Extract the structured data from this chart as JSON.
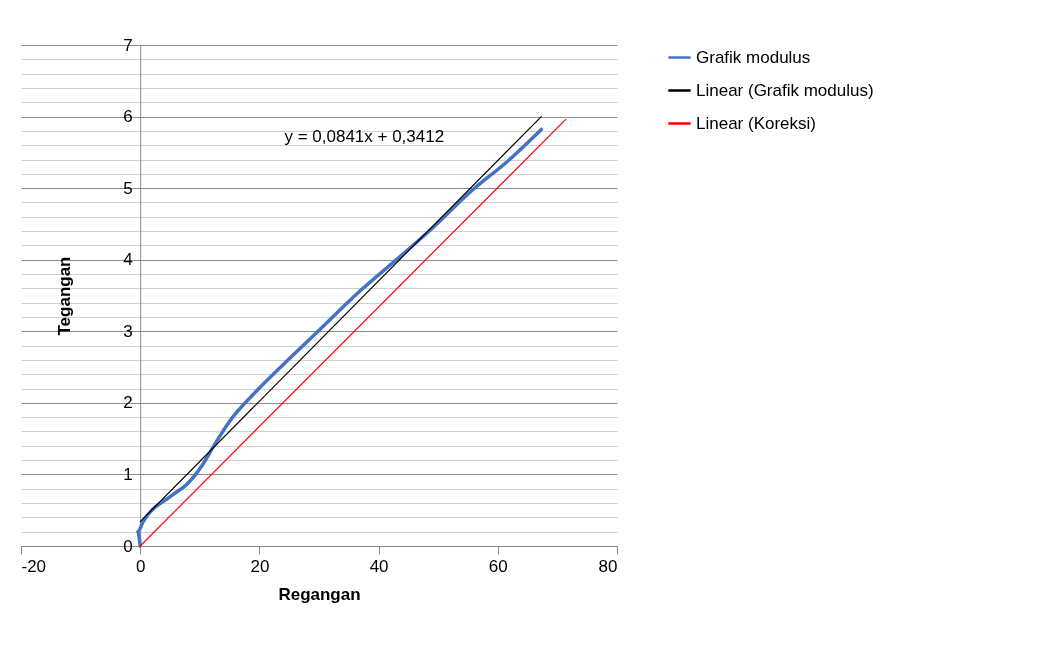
{
  "chart_data": {
    "type": "line",
    "xlabel": "Regangan",
    "ylabel": "Tegangan",
    "xlim": [
      -20,
      80
    ],
    "xticks": [
      -20,
      0,
      20,
      40,
      60,
      80
    ],
    "ylim": [
      0,
      7
    ],
    "yticks": [
      0,
      {
        "value": 0.2,
        "label": null
      },
      {
        "value": 0.4,
        "label": null
      },
      {
        "value": 0.6,
        "label": null
      },
      {
        "value": 0.8,
        "label": null
      },
      1,
      {
        "value": 1.2,
        "label": null
      },
      {
        "value": 1.4,
        "label": null
      },
      {
        "value": 1.6,
        "label": null
      },
      {
        "value": 1.8,
        "label": null
      },
      2,
      {
        "value": 2.2,
        "label": null
      },
      {
        "value": 2.4,
        "label": null
      },
      {
        "value": 2.6,
        "label": null
      },
      {
        "value": 2.8,
        "label": null
      },
      3,
      {
        "value": 3.2,
        "label": null
      },
      {
        "value": 3.4,
        "label": null
      },
      {
        "value": 3.6,
        "label": null
      },
      {
        "value": 3.8,
        "label": null
      },
      4,
      {
        "value": 4.2,
        "label": null
      },
      {
        "value": 4.4,
        "label": null
      },
      {
        "value": 4.6,
        "label": null
      },
      {
        "value": 4.8,
        "label": null
      },
      5,
      {
        "value": 5.2,
        "label": null
      },
      {
        "value": 5.4,
        "label": null
      },
      {
        "value": 5.6,
        "label": null
      },
      {
        "value": 5.8,
        "label": null
      },
      6,
      {
        "value": 6.2,
        "label": null
      },
      {
        "value": 6.4,
        "label": null
      },
      {
        "value": 6.6,
        "label": null
      },
      {
        "value": 6.8,
        "label": null
      },
      7
    ],
    "grid": "y",
    "legend": "right",
    "marker": "none",
    "line_style": "solid",
    "series": [
      {
        "name": "Grafik modulus",
        "color": "#4472c4",
        "x": [
          0,
          -0.4,
          0.5,
          5.2,
          7.8,
          10.5,
          12.5,
          14.8,
          19.8,
          23.8,
          29.1,
          37.1,
          43.7,
          49,
          55.7,
          61.7,
          67.3
        ],
        "values": [
          0,
          0.2,
          0.34,
          0.7,
          0.86,
          1.14,
          1.42,
          1.72,
          2.19,
          2.52,
          2.94,
          3.58,
          4.05,
          4.44,
          4.97,
          5.38,
          5.82
        ]
      },
      {
        "name": "Linear (Grafik modulus)",
        "color": "#000000",
        "x": [
          0,
          67.3
        ],
        "values": [
          0.34,
          6.0
        ]
      },
      {
        "name": "Linear (Koreksi)",
        "color": "#ff0000",
        "x": [
          0,
          71.4
        ],
        "values": [
          0,
          5.96
        ]
      }
    ],
    "annotations": [
      "y = 0,0841x + 0,3412"
    ]
  }
}
